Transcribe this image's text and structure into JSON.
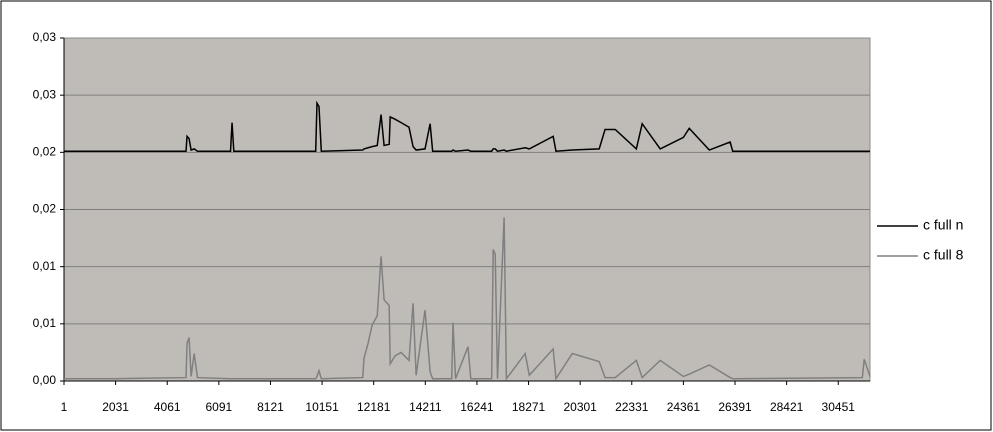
{
  "chart_data": {
    "type": "line",
    "x": [
      1,
      2000,
      4800,
      4840,
      4920,
      5000,
      5120,
      5250,
      6550,
      6610,
      6680,
      9900,
      9950,
      10030,
      10120,
      11750,
      11800,
      11960,
      12120,
      12320,
      12470,
      12590,
      12790,
      12830,
      13020,
      13260,
      13570,
      13730,
      13850,
      14200,
      14400,
      14500,
      15250,
      15300,
      15400,
      15890,
      16000,
      16820,
      16880,
      16960,
      17050,
      17310,
      17400,
      18140,
      18300,
      19240,
      19350,
      19990,
      21050,
      21280,
      21680,
      22510,
      22740,
      23450,
      24360,
      24590,
      25380,
      26200,
      26300,
      31400,
      31470,
      31700
    ],
    "series": [
      {
        "name": "c full n",
        "color": "#000000",
        "values": [
          0.0201,
          0.0201,
          0.0201,
          0.0214,
          0.0212,
          0.0202,
          0.0203,
          0.0201,
          0.0201,
          0.0226,
          0.0201,
          0.0201,
          0.0243,
          0.024,
          0.0201,
          0.0202,
          0.0203,
          0.0204,
          0.0205,
          0.0206,
          0.0233,
          0.0206,
          0.0207,
          0.0231,
          0.0229,
          0.0226,
          0.0222,
          0.0205,
          0.0202,
          0.0203,
          0.0225,
          0.0201,
          0.0201,
          0.0202,
          0.0201,
          0.0202,
          0.0201,
          0.0201,
          0.0203,
          0.0203,
          0.0201,
          0.0202,
          0.0201,
          0.0204,
          0.0203,
          0.0214,
          0.0201,
          0.0202,
          0.0203,
          0.022,
          0.022,
          0.0203,
          0.0225,
          0.0203,
          0.0213,
          0.0221,
          0.0202,
          0.0209,
          0.0201,
          0.0201,
          0.0201,
          0.0201
        ]
      },
      {
        "name": "c full 8",
        "color": "#808080",
        "values": [
          0.0002,
          0.0002,
          0.0003,
          0.0033,
          0.0038,
          0.0004,
          0.0024,
          0.0003,
          0.0002,
          0.0002,
          0.0002,
          0.0002,
          0.0004,
          0.0009,
          0.0002,
          0.0003,
          0.002,
          0.0033,
          0.0049,
          0.0057,
          0.0109,
          0.0071,
          0.0066,
          0.0015,
          0.0022,
          0.0025,
          0.0018,
          0.0068,
          0.0005,
          0.0062,
          0.0008,
          0.0002,
          0.0002,
          0.0051,
          0.0002,
          0.003,
          0.0002,
          0.0002,
          0.0115,
          0.0111,
          0.0002,
          0.0143,
          0.0002,
          0.0024,
          0.0005,
          0.0028,
          0.0002,
          0.0024,
          0.0017,
          0.0003,
          0.0003,
          0.0018,
          0.0003,
          0.0018,
          0.0004,
          0.0006,
          0.0014,
          0.0003,
          0.0002,
          0.0003,
          0.0019,
          0.0004
        ]
      }
    ],
    "xlim": [
      1,
      31700
    ],
    "xticks": [
      1,
      2031,
      4061,
      6091,
      8121,
      10151,
      12181,
      14211,
      16241,
      18271,
      20301,
      22331,
      24361,
      26391,
      28421,
      30451
    ],
    "ylim": [
      0,
      0.03
    ],
    "yticks": [
      {
        "value": 0,
        "label": "0,00"
      },
      {
        "value": 0.005,
        "label": "0,01"
      },
      {
        "value": 0.01,
        "label": "0,01"
      },
      {
        "value": 0.015,
        "label": "0,02"
      },
      {
        "value": 0.02,
        "label": "0,02"
      },
      {
        "value": 0.025,
        "label": "0,03"
      },
      {
        "value": 0.03,
        "label": "0,03"
      }
    ],
    "grid": true,
    "legend": "right"
  }
}
